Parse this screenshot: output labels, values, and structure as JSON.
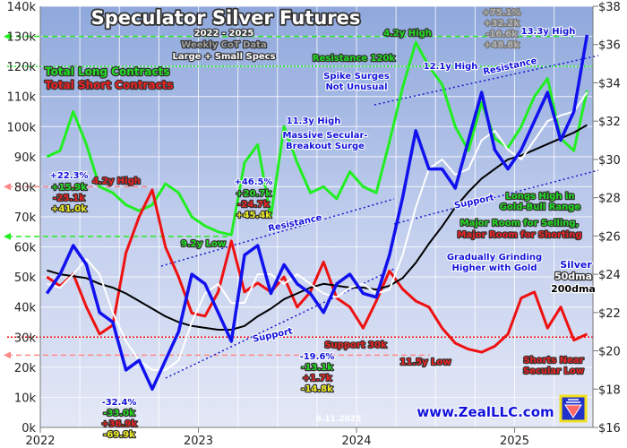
{
  "chart_data": {
    "type": "line",
    "title": "Speculator Silver Futures",
    "subtitle": "2022 - 2025",
    "xlabel": "",
    "ylabel": "",
    "y2label": "",
    "xlim": [
      "2022-01",
      "2025-06"
    ],
    "ylim": [
      0,
      140
    ],
    "y2lim": [
      16,
      38
    ],
    "grid": true,
    "x_ticks": [
      "2022",
      "2023",
      "2024",
      "2025"
    ],
    "y_ticks": [
      "0k",
      "10k",
      "20k",
      "30k",
      "40k",
      "50k",
      "60k",
      "70k",
      "80k",
      "90k",
      "100k",
      "110k",
      "120k",
      "130k",
      "140k"
    ],
    "y2_ticks": [
      "$16",
      "$18",
      "$20",
      "$22",
      "$24",
      "$26",
      "$28",
      "$30",
      "$32",
      "$34",
      "$36",
      "$38"
    ],
    "dates": [
      "2022-01",
      "2022-02",
      "2022-03",
      "2022-04",
      "2022-05",
      "2022-06",
      "2022-07",
      "2022-08",
      "2022-09",
      "2022-10",
      "2022-11",
      "2022-12",
      "2023-01",
      "2023-02",
      "2023-03",
      "2023-04",
      "2023-05",
      "2023-06",
      "2023-07",
      "2023-08",
      "2023-09",
      "2023-10",
      "2023-11",
      "2023-12",
      "2024-01",
      "2024-02",
      "2024-03",
      "2024-04",
      "2024-05",
      "2024-06",
      "2024-07",
      "2024-08",
      "2024-09",
      "2024-10",
      "2024-11",
      "2024-12",
      "2025-01",
      "2025-02",
      "2025-03",
      "2025-04",
      "2025-05",
      "2025-06"
    ],
    "series": [
      {
        "name": "Total Long Contracts",
        "axis": "left",
        "unit": "k contracts",
        "color": "#22ee22",
        "values": [
          90,
          92,
          105,
          94,
          80,
          78,
          74,
          72,
          74,
          81,
          78,
          70,
          67,
          65,
          64,
          88,
          94,
          70,
          100,
          88,
          78,
          80,
          76,
          85,
          80,
          78,
          95,
          113,
          128,
          120,
          114,
          100,
          92,
          108,
          96,
          93,
          100,
          110,
          116,
          96,
          92,
          112
        ]
      },
      {
        "name": "Total Short Contracts",
        "axis": "left",
        "unit": "k contracts",
        "color": "#ee1111",
        "values": [
          50,
          47,
          51,
          40,
          31,
          34,
          58,
          70,
          79,
          60,
          50,
          38,
          37,
          45,
          62,
          45,
          48,
          45,
          50,
          40,
          45,
          55,
          43,
          40,
          33,
          42,
          52,
          46,
          42,
          40,
          33,
          28,
          26,
          25,
          27,
          31,
          43,
          45,
          33,
          40,
          29,
          31
        ]
      },
      {
        "name": "Silver",
        "axis": "right",
        "unit": "$",
        "color": "#1111ee",
        "values": [
          23,
          24,
          25.5,
          24.5,
          22,
          21.5,
          19,
          19.5,
          18,
          19.5,
          21,
          24,
          23.5,
          22,
          20.5,
          25,
          25.5,
          23,
          24.5,
          23.5,
          23,
          22,
          23.5,
          24,
          23,
          22.8,
          25,
          28,
          31.5,
          29.5,
          29.5,
          28.5,
          31,
          33.5,
          30.5,
          29.5,
          30.5,
          32,
          33.5,
          31,
          32.5,
          36.5
        ]
      },
      {
        "name": "50dma",
        "axis": "right",
        "unit": "$",
        "color": "#ffffff",
        "values": [
          23.5,
          23.3,
          24,
          24.8,
          24,
          22,
          20.5,
          19.5,
          19,
          19,
          19.5,
          21.5,
          23,
          23.5,
          22.5,
          22.5,
          24,
          24,
          23.5,
          24,
          23.5,
          23,
          22.8,
          23.3,
          23.5,
          23,
          23.2,
          25,
          27.5,
          29.5,
          30,
          29.2,
          29.5,
          31,
          31.5,
          30.5,
          30,
          31,
          32,
          32.3,
          32.5,
          33.5
        ]
      },
      {
        "name": "200dma",
        "axis": "right",
        "unit": "$",
        "color": "#000000",
        "values": [
          24.2,
          24,
          23.9,
          23.8,
          23.5,
          23.3,
          23,
          22.6,
          22.2,
          21.8,
          21.5,
          21.3,
          21.2,
          21.1,
          21.1,
          21.3,
          21.8,
          22.2,
          22.7,
          23,
          23.3,
          23.5,
          23.4,
          23.3,
          23.3,
          23.2,
          23.4,
          23.8,
          24.6,
          25.6,
          26.5,
          27.5,
          28.3,
          29,
          29.5,
          30,
          30.2,
          30.5,
          30.8,
          31.1,
          31.4,
          31.8
        ]
      }
    ],
    "reference_lines": [
      {
        "label": "4.2y High",
        "value": 130,
        "axis": "left",
        "style": "dashed",
        "color": "#22ee22"
      },
      {
        "label": "Resistance 120k",
        "value": 120,
        "axis": "left",
        "style": "dotted",
        "color": "#22ee22"
      },
      {
        "label": "4.2y High",
        "value": 80,
        "axis": "left",
        "style": "dashed",
        "color": "#ff8888"
      },
      {
        "label": "9.2y Low",
        "value": 63.5,
        "axis": "left",
        "style": "dashed",
        "color": "#22ee22"
      },
      {
        "label": "Support 30k",
        "value": 30,
        "axis": "left",
        "style": "dotted",
        "color": "#ee1111"
      },
      {
        "label": "11.5y Low",
        "value": 24,
        "axis": "left",
        "style": "dashed",
        "color": "#ff8888"
      }
    ],
    "annotations": [
      {
        "text": "2022 - 2025",
        "color": "#ffffff"
      },
      {
        "text": "Weekly CoT Data",
        "color": "#a0a0a0"
      },
      {
        "text": "Large + Small Specs",
        "color": "#ffffff"
      },
      {
        "text": "Total Long Contracts",
        "color": "#22dd22"
      },
      {
        "text": "Total Short Contracts",
        "color": "#ee2222"
      },
      {
        "text": "4.2y High",
        "color": "#22dd22"
      },
      {
        "text": "Resistance 120k",
        "color": "#22dd22"
      },
      {
        "text": "Spike Surges",
        "color": "#1111dd"
      },
      {
        "text": "Not Unusual",
        "color": "#1111dd"
      },
      {
        "text": "12.1y High",
        "color": "#1111dd"
      },
      {
        "text": "Resistance",
        "color": "#1111dd"
      },
      {
        "text": "13.3y High",
        "color": "#1111dd"
      },
      {
        "text": "+75.1%",
        "color": "#b0b0b0"
      },
      {
        "text": "+32.2k",
        "color": "#b0b0b0"
      },
      {
        "text": "-16.6k",
        "color": "#b0b0b0"
      },
      {
        "text": "+48.8k",
        "color": "#b0b0b0"
      },
      {
        "text": "11.3y High",
        "color": "#1111dd"
      },
      {
        "text": "Massive Secular-",
        "color": "#1111dd"
      },
      {
        "text": "Breakout Surge",
        "color": "#1111dd"
      },
      {
        "text": "+22.3%",
        "color": "#1111dd"
      },
      {
        "text": "+15.9k",
        "color": "#22dd22"
      },
      {
        "text": "-25.1k",
        "color": "#ee2222"
      },
      {
        "text": "+41.0k",
        "color": "#eeee22"
      },
      {
        "text": "4.2y High",
        "color": "#ee2222"
      },
      {
        "text": "+46.5%",
        "color": "#1111dd"
      },
      {
        "text": "+20.7k",
        "color": "#22dd22"
      },
      {
        "text": "-24.7k",
        "color": "#ee2222"
      },
      {
        "text": "+45.4k",
        "color": "#eeee22"
      },
      {
        "text": "Resistance",
        "color": "#1111dd"
      },
      {
        "text": "9.2y Low",
        "color": "#22dd22"
      },
      {
        "text": "Support",
        "color": "#1111dd"
      },
      {
        "text": "Longs High in",
        "color": "#22dd22"
      },
      {
        "text": "Gold-Bull Range",
        "color": "#22dd22"
      },
      {
        "text": "Major Room for Selling,",
        "color": "#22dd22"
      },
      {
        "text": "Major Room for Shorting",
        "color": "#ee2222"
      },
      {
        "text": "Gradually Grinding",
        "color": "#1111dd"
      },
      {
        "text": "Higher with Gold",
        "color": "#1111dd"
      },
      {
        "text": "Silver",
        "color": "#1111dd"
      },
      {
        "text": "50dma",
        "color": "#ffffff"
      },
      {
        "text": "200dma",
        "color": "#000000"
      },
      {
        "text": "Support",
        "color": "#1111dd"
      },
      {
        "text": "-32.4%",
        "color": "#1111dd"
      },
      {
        "text": "-33.0k",
        "color": "#22dd22"
      },
      {
        "text": "+36.9k",
        "color": "#ee2222"
      },
      {
        "text": "-69.9k",
        "color": "#eeee22"
      },
      {
        "text": "-19.6%",
        "color": "#1111dd"
      },
      {
        "text": "-13.1k",
        "color": "#22dd22"
      },
      {
        "text": "+1.7k",
        "color": "#ee2222"
      },
      {
        "text": "-14.8k",
        "color": "#eeee22"
      },
      {
        "text": "Support 30k",
        "color": "#ee2222"
      },
      {
        "text": "11.5y Low",
        "color": "#ee2222"
      },
      {
        "text": "Shorts Near",
        "color": "#ee2222"
      },
      {
        "text": "Secular Low",
        "color": "#ee2222"
      },
      {
        "text": "6.11.2025",
        "color": "#ffffff"
      },
      {
        "text": "www.ZealLLC.com",
        "color": "#1111dd"
      }
    ],
    "logo": "ZealLLC"
  }
}
